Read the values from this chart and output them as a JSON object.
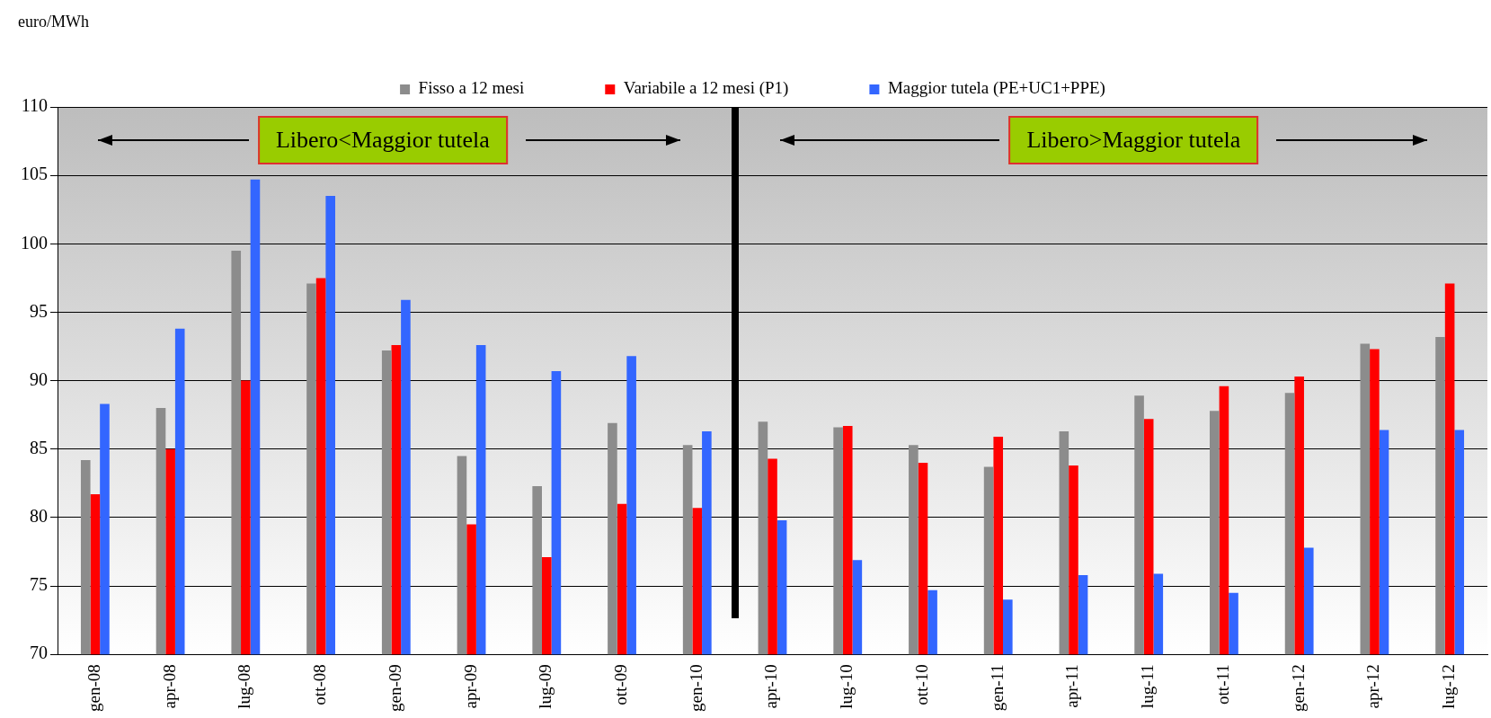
{
  "chart_data": {
    "type": "bar",
    "ylabel": "euro/MWh",
    "categories": [
      "gen-08",
      "apr-08",
      "lug-08",
      "ott-08",
      "gen-09",
      "apr-09",
      "lug-09",
      "ott-09",
      "gen-10",
      "apr-10",
      "lug-10",
      "ott-10",
      "gen-11",
      "apr-11",
      "lug-11",
      "ott-11",
      "gen-12",
      "apr-12",
      "lug-12"
    ],
    "series": [
      {
        "name": "Fisso a 12 mesi",
        "color": "#8c8c8c",
        "values": [
          84.2,
          88.0,
          99.5,
          97.1,
          92.2,
          84.5,
          82.3,
          86.9,
          85.3,
          87.0,
          86.6,
          85.3,
          83.7,
          86.3,
          88.9,
          87.8,
          89.1,
          92.7,
          93.2
        ]
      },
      {
        "name": "Variabile a 12 mesi (P1)",
        "color": "#ff0000",
        "values": [
          81.7,
          85.0,
          90.0,
          97.5,
          92.6,
          79.5,
          77.1,
          81.0,
          80.7,
          84.3,
          86.7,
          84.0,
          85.9,
          83.8,
          87.2,
          89.6,
          90.3,
          92.3,
          97.1
        ]
      },
      {
        "name": "Maggior tutela (PE+UC1+PPE)",
        "color": "#3366ff",
        "values": [
          88.3,
          93.8,
          104.7,
          103.5,
          95.9,
          92.6,
          90.7,
          91.8,
          86.3,
          79.8,
          76.9,
          74.7,
          74.0,
          75.8,
          75.9,
          74.5,
          77.8,
          86.4,
          86.4
        ]
      }
    ],
    "ylim": [
      70,
      110
    ],
    "yticks": [
      70,
      75,
      80,
      85,
      90,
      95,
      100,
      105,
      110
    ],
    "grid": "y",
    "legend": "top",
    "annotations": [
      "Libero<Maggior tutela",
      "Libero>Maggior tutela"
    ]
  }
}
